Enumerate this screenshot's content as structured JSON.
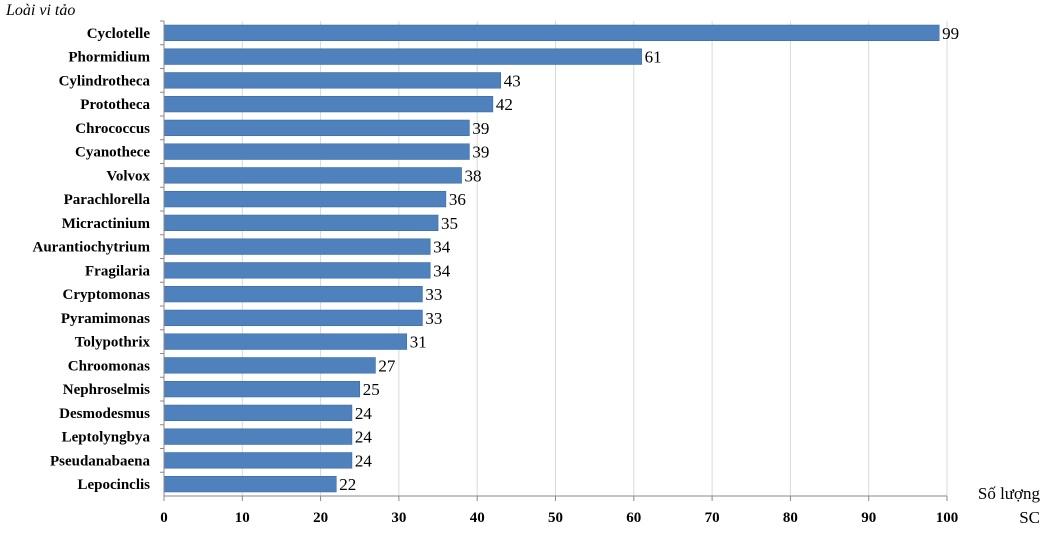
{
  "chart_data": {
    "type": "bar",
    "orientation": "horizontal",
    "title": "",
    "ylabel": "Loài vi tảo",
    "xlabel_line1": "Số lượng",
    "xlabel_line2": "SC",
    "categories": [
      "Cyclotelle",
      "Phormidium",
      "Cylindrotheca",
      "Prototheca",
      "Chrococcus",
      "Cyanothece",
      "Volvox",
      "Parachlorella",
      "Micractinium",
      "Aurantiochytrium",
      "Fragilaria",
      "Cryptomonas",
      "Pyramimonas",
      "Tolypothrix",
      "Chroomonas",
      "Nephroselmis",
      "Desmodesmus",
      "Leptolyngbya",
      "Pseudanabaena",
      "Lepocinclis"
    ],
    "values": [
      99,
      61,
      43,
      42,
      39,
      39,
      38,
      36,
      35,
      34,
      34,
      33,
      33,
      31,
      27,
      25,
      24,
      24,
      24,
      22
    ],
    "xlim": [
      0,
      100
    ],
    "xticks": [
      0,
      10,
      20,
      30,
      40,
      50,
      60,
      70,
      80,
      90,
      100
    ],
    "grid": "vertical",
    "data_labels": true,
    "legend": "none",
    "colors": {
      "bar": "#4f81bd",
      "bar_edge": "#3a6aa5",
      "grid": "#d9d9d9",
      "axis": "#888888"
    }
  }
}
